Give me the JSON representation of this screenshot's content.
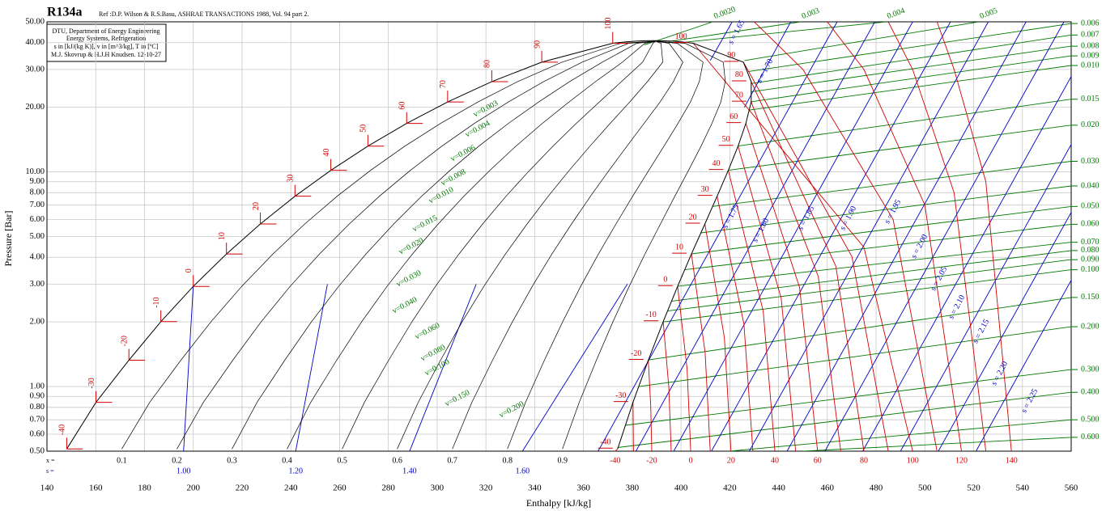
{
  "chart_data": {
    "type": "line",
    "log_y": true,
    "grid": true,
    "title": "R134a",
    "reference": "Ref :D.P. Wilson & R.S.Basu, ASHRAE TRANSACTIONS 1988, Vol. 94 part 2.",
    "info": [
      "DTU, Department of Energy Engineering",
      "Energy Systems, Refrigeration",
      "s in [kJ/(kg K)], v in [m^3/kg], T in [ºC]",
      "M.J. Skovrup & H.J.H Knudsen. 12-10-27"
    ],
    "x_label": "Enthalpy [kJ/kg]",
    "y_label": "Pressure [Bar]",
    "xlim": [
      140,
      560
    ],
    "xticks": [
      140,
      160,
      180,
      200,
      220,
      240,
      260,
      280,
      300,
      320,
      340,
      360,
      380,
      400,
      420,
      440,
      460,
      480,
      500,
      520,
      540,
      560
    ],
    "ylim": [
      0.5,
      50
    ],
    "yticks": [
      {
        "value": 0.5,
        "label": "0.50"
      },
      {
        "value": 0.6,
        "label": "0.60"
      },
      {
        "value": 0.7,
        "label": "0.70"
      },
      {
        "value": 0.8,
        "label": "0.80"
      },
      {
        "value": 0.9,
        "label": "0.90"
      },
      {
        "value": 1,
        "label": "1.00"
      },
      {
        "value": 2,
        "label": "2.00"
      },
      {
        "value": 3,
        "label": "3.00"
      },
      {
        "value": 4,
        "label": "4.00"
      },
      {
        "value": 5,
        "label": "5.00"
      },
      {
        "value": 6,
        "label": "6.00"
      },
      {
        "value": 7,
        "label": "7.00"
      },
      {
        "value": 8,
        "label": "8.00"
      },
      {
        "value": 9,
        "label": "9.00"
      },
      {
        "value": 10,
        "label": "10.00"
      },
      {
        "value": 20,
        "label": "20.00"
      },
      {
        "value": 30,
        "label": "30.00"
      },
      {
        "value": 40,
        "label": "40.00"
      },
      {
        "value": 50,
        "label": "50.00"
      }
    ],
    "colors": {
      "isotherm": "#d40000",
      "isentrope": "#0000c8",
      "isochore": "#007a00",
      "quality": "#000000",
      "saturation": "#000000",
      "grid": "#c8c8c8"
    },
    "saturation": {
      "T": [
        -40,
        -30,
        -20,
        -10,
        0,
        10,
        20,
        30,
        40,
        50,
        60,
        70,
        80,
        90,
        100
      ],
      "p": [
        0.512,
        0.844,
        1.327,
        2.006,
        2.928,
        4.146,
        5.717,
        7.702,
        10.166,
        13.179,
        16.818,
        21.168,
        26.332,
        32.442,
        39.724
      ],
      "hf": [
        148.1,
        160.1,
        173.6,
        186.7,
        200.0,
        213.6,
        227.5,
        241.7,
        256.4,
        271.6,
        287.5,
        304.3,
        322.4,
        342.9,
        372.0
      ],
      "hg": [
        374.0,
        380.3,
        386.6,
        392.7,
        398.6,
        404.3,
        409.8,
        414.8,
        419.4,
        423.4,
        426.6,
        428.8,
        428.8,
        425.6,
        405.0
      ]
    },
    "critical": {
      "h": 389.6,
      "p": 40.59
    },
    "x_row_label": "x =",
    "s_row_label": "s =",
    "qualities": [
      0.1,
      0.2,
      0.3,
      0.4,
      0.5,
      0.6,
      0.7,
      0.8,
      0.9
    ],
    "dome_isentropes": [
      {
        "value": 1.0,
        "label": "1.00",
        "h": [
          196,
          200
        ],
        "p": [
          0.5,
          2.928
        ]
      },
      {
        "value": 1.2,
        "label": "1.20",
        "h": [
          242,
          255
        ],
        "p": [
          0.5,
          3
        ]
      },
      {
        "value": 1.4,
        "label": "1.40",
        "h": [
          288.7,
          316
        ],
        "p": [
          0.5,
          3
        ]
      },
      {
        "value": 1.6,
        "label": "1.60",
        "h": [
          335,
          378
        ],
        "p": [
          0.5,
          3
        ]
      }
    ],
    "isotherms": [
      {
        "T": -40,
        "h": [
          374.0,
          373
        ],
        "p": [
          0.512,
          0.5
        ]
      },
      {
        "T": -30,
        "h": [
          380.3,
          380.4,
          380.5
        ],
        "p": [
          0.844,
          0.65,
          0.5
        ]
      },
      {
        "T": -20,
        "h": [
          386.6,
          387.6,
          388
        ],
        "p": [
          1.327,
          0.81,
          0.5
        ]
      },
      {
        "T": -10,
        "h": [
          392.7,
          395,
          396
        ],
        "p": [
          2.006,
          1.0,
          0.5
        ]
      },
      {
        "T": 0,
        "h": [
          398.6,
          402.5,
          404
        ],
        "p": [
          2.928,
          1.21,
          0.5
        ]
      },
      {
        "T": 10,
        "h": [
          404.3,
          409.9,
          412
        ],
        "p": [
          4.146,
          1.44,
          0.5
        ]
      },
      {
        "T": 20,
        "h": [
          409.8,
          417.8,
          420.5
        ],
        "p": [
          5.717,
          1.69,
          0.5
        ]
      },
      {
        "T": 30,
        "h": [
          414.8,
          425.8,
          429.5
        ],
        "p": [
          7.702,
          1.96,
          0.5
        ]
      },
      {
        "T": 40,
        "h": [
          419.4,
          433.7,
          438.5
        ],
        "p": [
          10.166,
          2.25,
          0.5
        ]
      },
      {
        "T": 50,
        "h": [
          423.4,
          441.1,
          447
        ],
        "p": [
          13.179,
          2.57,
          0.5
        ]
      },
      {
        "T": 60,
        "h": [
          426.6,
          448.6,
          456
        ],
        "p": [
          16.818,
          2.9,
          0.5
        ]
      },
      {
        "T": 70,
        "h": [
          428.8,
          456.3,
          465.5
        ],
        "p": [
          21.168,
          3.25,
          0.5
        ]
      },
      {
        "T": 80,
        "h": [
          428.8,
          463.5,
          475
        ],
        "p": [
          26.332,
          3.63,
          0.5
        ]
      },
      {
        "T": 90,
        "h": [
          425.6,
          470.1,
          485
        ],
        "p": [
          32.442,
          4.03,
          0.5
        ]
      },
      {
        "T": 100,
        "h": [
          405.0,
          475,
          495
        ],
        "p": [
          39.724,
          4.46,
          0.5
        ]
      },
      {
        "T": 110,
        "h": [
          430,
          450,
          487,
          505
        ],
        "p": [
          50,
          30,
          6,
          0.5
        ]
      },
      {
        "T": 120,
        "h": [
          460,
          475,
          500,
          515
        ],
        "p": [
          50,
          30,
          7,
          0.5
        ]
      },
      {
        "T": 130,
        "h": [
          485,
          495,
          512,
          525
        ],
        "p": [
          50,
          30,
          8,
          0.5
        ]
      },
      {
        "T": 140,
        "h": [
          505,
          512,
          525,
          535.5
        ],
        "p": [
          50,
          30,
          9,
          0.5
        ]
      }
    ],
    "isentropes": [
      {
        "value": 1.65,
        "label": "s = 1.65",
        "h": [
          412,
          421
        ],
        "p": [
          33,
          50
        ]
      },
      {
        "value": 1.7,
        "label": "s = 1.70",
        "h": [
          426,
          445
        ],
        "p": [
          20,
          50
        ]
      },
      {
        "value": 1.75,
        "label": "s = 1.75",
        "h": [
          366,
          464
        ],
        "p": [
          0.5,
          50
        ]
      },
      {
        "value": 1.8,
        "label": "s = 1.80",
        "h": [
          381.5,
          479.5
        ],
        "p": [
          0.5,
          50
        ]
      },
      {
        "value": 1.85,
        "label": "s = 1.85",
        "h": [
          397,
          495
        ],
        "p": [
          0.5,
          50
        ]
      },
      {
        "value": 1.9,
        "label": "s = 1.90",
        "h": [
          412.5,
          510.5
        ],
        "p": [
          0.5,
          50
        ]
      },
      {
        "value": 1.95,
        "label": "s = 1.95",
        "h": [
          428,
          526
        ],
        "p": [
          0.5,
          50
        ]
      },
      {
        "value": 2.0,
        "label": "s = 2.00",
        "h": [
          443.5,
          541.5
        ],
        "p": [
          0.5,
          50
        ]
      },
      {
        "value": 2.05,
        "label": "s = 2.05",
        "h": [
          459,
          557
        ],
        "p": [
          0.5,
          50
        ]
      },
      {
        "value": 2.1,
        "label": "s = 2.10",
        "h": [
          474.5,
          572.5
        ],
        "p": [
          0.5,
          50
        ]
      },
      {
        "value": 2.15,
        "label": "s = 2.15",
        "h": [
          490,
          588
        ],
        "p": [
          0.5,
          50
        ]
      },
      {
        "value": 2.2,
        "label": "s = 2.20",
        "h": [
          505.5,
          603.5
        ],
        "p": [
          0.5,
          50
        ]
      },
      {
        "value": 2.25,
        "label": "s = 2.25",
        "h": [
          521,
          619
        ],
        "p": [
          0.5,
          50
        ]
      }
    ],
    "isochores": [
      {
        "value": 0.002,
        "label": "0.0020",
        "h": [
          385,
          413
        ],
        "p": [
          39,
          50
        ]
      },
      {
        "value": 0.003,
        "label": "0.003",
        "h": [
          395,
          449
        ],
        "p": [
          40.5,
          50
        ]
      },
      {
        "value": 0.004,
        "label": "0.004",
        "h": [
          400,
          484
        ],
        "p": [
          40,
          50
        ]
      },
      {
        "value": 0.005,
        "label": "0.005",
        "h": [
          426,
          522
        ],
        "p": [
          33,
          50
        ]
      },
      {
        "value": 0.006,
        "label": "0.006",
        "h": [
          427.5,
          560
        ],
        "p": [
          29.3,
          49.1
        ]
      },
      {
        "value": 0.007,
        "label": "0.007",
        "h": [
          428.8,
          560
        ],
        "p": [
          25.8,
          43.4
        ]
      },
      {
        "value": 0.008,
        "label": "0.008",
        "h": [
          428.8,
          560
        ],
        "p": [
          23.6,
          38.5
        ]
      },
      {
        "value": 0.009,
        "label": "0.009",
        "h": [
          428.6,
          560
        ],
        "p": [
          21.2,
          34.7
        ]
      },
      {
        "value": 0.01,
        "label": "0.010",
        "h": [
          427.9,
          560
        ],
        "p": [
          19.4,
          31.3
        ]
      },
      {
        "value": 0.015,
        "label": "0.015",
        "h": [
          423.4,
          560
        ],
        "p": [
          13.2,
          21.8
        ]
      },
      {
        "value": 0.02,
        "label": "0.020",
        "h": [
          419.4,
          560
        ],
        "p": [
          10.17,
          16.5
        ]
      },
      {
        "value": 0.03,
        "label": "0.030",
        "h": [
          412.8,
          560
        ],
        "p": [
          6.9,
          11.2
        ]
      },
      {
        "value": 0.04,
        "label": "0.040",
        "h": [
          408.2,
          560
        ],
        "p": [
          5.2,
          8.6
        ]
      },
      {
        "value": 0.05,
        "label": "0.050",
        "h": [
          404.3,
          560
        ],
        "p": [
          4.15,
          6.9
        ]
      },
      {
        "value": 0.06,
        "label": "0.060",
        "h": [
          401.5,
          560
        ],
        "p": [
          3.5,
          5.7
        ]
      },
      {
        "value": 0.07,
        "label": "0.070",
        "h": [
          398.6,
          560
        ],
        "p": [
          2.93,
          4.7
        ]
      },
      {
        "value": 0.08,
        "label": "0.080",
        "h": [
          396.3,
          560
        ],
        "p": [
          2.5,
          4.3
        ]
      },
      {
        "value": 0.09,
        "label": "0.090",
        "h": [
          394.5,
          560
        ],
        "p": [
          2.25,
          3.9
        ]
      },
      {
        "value": 0.1,
        "label": "0.100",
        "h": [
          392.7,
          560
        ],
        "p": [
          2.0,
          3.5
        ]
      },
      {
        "value": 0.15,
        "label": "0.150",
        "h": [
          386.6,
          560
        ],
        "p": [
          1.33,
          2.6
        ]
      },
      {
        "value": 0.2,
        "label": "0.200",
        "h": [
          382.8,
          560
        ],
        "p": [
          1.0,
          1.9
        ]
      },
      {
        "value": 0.3,
        "label": "0.300",
        "h": [
          377.2,
          560
        ],
        "p": [
          0.66,
          1.2
        ]
      },
      {
        "value": 0.4,
        "label": "0.400",
        "h": [
          374,
          560
        ],
        "p": [
          0.52,
          0.94
        ]
      },
      {
        "value": 0.5,
        "label": "0.500",
        "h": [
          420,
          560
        ],
        "p": [
          0.5,
          0.7
        ]
      },
      {
        "value": 0.6,
        "label": "0.600",
        "h": [
          450,
          560
        ],
        "p": [
          0.5,
          0.58
        ]
      }
    ],
    "isochore_inner_labels": [
      "v=0.003",
      "v=0.004",
      "v=0.006",
      "v=0.008",
      "v=0.010",
      "v=0.015",
      "v=0.020",
      "v=0.030",
      "v=0.040",
      "v=0.060",
      "v=0.080",
      "v=0.100",
      "v=0.150",
      "v=0.200"
    ]
  }
}
